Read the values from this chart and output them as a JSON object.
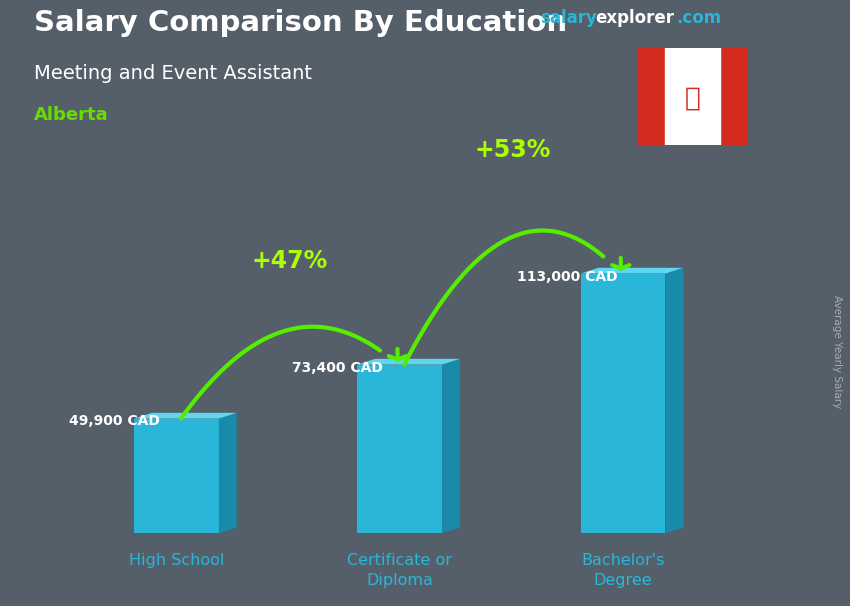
{
  "title_line1": "Salary Comparison By Education",
  "subtitle": "Meeting and Event Assistant",
  "location": "Alberta",
  "ylabel": "Average Yearly Salary",
  "watermark_salary": "salary",
  "watermark_explorer": "explorer",
  "watermark_com": ".com",
  "categories": [
    "High School",
    "Certificate or\nDiploma",
    "Bachelor's\nDegree"
  ],
  "values": [
    49900,
    73400,
    113000
  ],
  "labels": [
    "49,900 CAD",
    "73,400 CAD",
    "113,000 CAD"
  ],
  "pct_labels": [
    "+47%",
    "+53%"
  ],
  "bar_front_color": "#29b6d8",
  "bar_side_color": "#1a8aaa",
  "bar_top_color": "#5dd8f0",
  "background_color": "#555f6a",
  "title_color": "#ffffff",
  "subtitle_color": "#ffffff",
  "location_color": "#66dd00",
  "label_color": "#ffffff",
  "pct_color": "#aaff00",
  "arrow_color": "#55ee00",
  "cat_color": "#29b6d8",
  "watermark_salary_color": "#29b6d8",
  "watermark_explorer_color": "#ffffff",
  "watermark_com_color": "#29b6d8",
  "bar_width": 0.38,
  "ylim": [
    0,
    145000
  ],
  "xlim": [
    -0.6,
    2.75
  ],
  "bar_positions": [
    0,
    1,
    2
  ],
  "depth_x": 0.08,
  "depth_y": 2500
}
